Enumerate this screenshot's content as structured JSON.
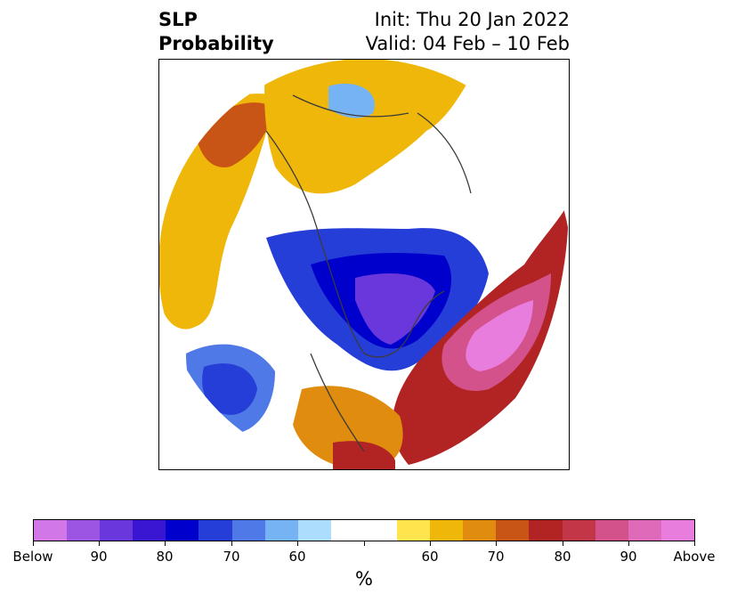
{
  "title": {
    "left_line1": "SLP",
    "left_line2": "Probability",
    "right_line1": "Init: Thu 20 Jan 2022",
    "right_line2": "Valid: 04 Feb – 10 Feb"
  },
  "map": {
    "projection": "polar-stereographic",
    "region": "Northern Hemisphere",
    "below_colors": [
      "#adddfc",
      "#75b3f5",
      "#4f79e6",
      "#263ed8",
      "#0000cc",
      "#3a16d3",
      "#6a37dc",
      "#9b55e2",
      "#d277e8"
    ],
    "above_colors": [
      "#ffe44d",
      "#f0b70b",
      "#e08c0e",
      "#c85516",
      "#b22323",
      "#c23648",
      "#d3528c",
      "#e06aba",
      "#e97ddd"
    ],
    "coast_color": "#3b3b3b"
  },
  "colorbar": {
    "colors": [
      "#d277e8",
      "#9b55e2",
      "#6a37dc",
      "#3a16d3",
      "#0000cc",
      "#263ed8",
      "#4f79e6",
      "#75b3f5",
      "#adddfc",
      "#ffffff",
      "#ffffff",
      "#ffe44d",
      "#f0b70b",
      "#e08c0e",
      "#c85516",
      "#b22323",
      "#c23648",
      "#d3528c",
      "#e06aba",
      "#e97ddd"
    ],
    "tick_labels": [
      "Below",
      "90",
      "80",
      "70",
      "60",
      "",
      "60",
      "70",
      "80",
      "90",
      "Above"
    ],
    "unit_label": "%"
  }
}
